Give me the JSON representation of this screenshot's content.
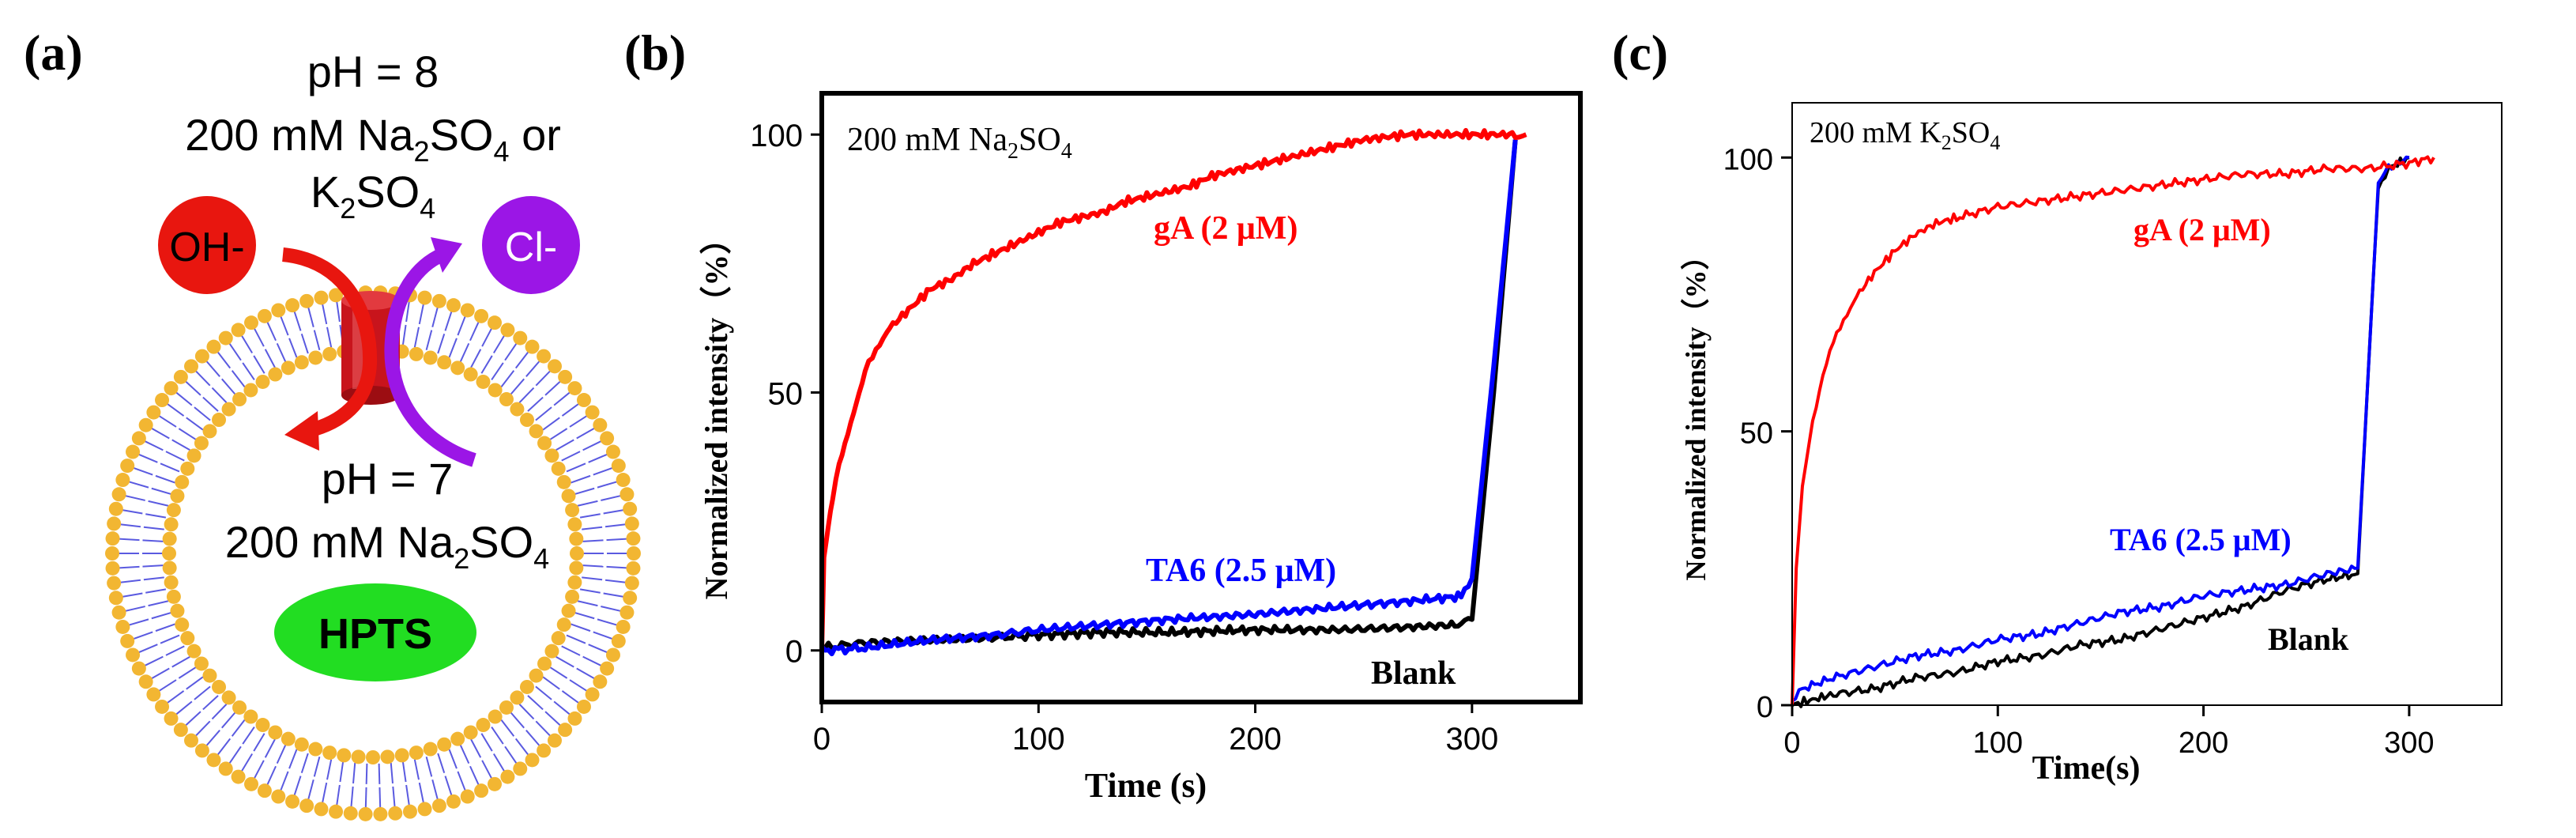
{
  "panel_labels": [
    "(a)",
    "(b)",
    "(c)"
  ],
  "schematic": {
    "outside_ph": "pH = 8",
    "outside_salt": "200 mM Na",
    "outside_salt_sub": "2",
    "outside_salt_tail": "SO",
    "outside_salt_sub2": "4",
    "outside_salt_or": " or",
    "outside_salt2": "K",
    "outside_salt2_sub": "2",
    "outside_salt2_tail": "SO",
    "outside_salt2_sub2": "4",
    "inside_ph": "pH = 7",
    "inside_salt": "200 mM Na",
    "inside_salt_sub": "2",
    "inside_salt_tail": "SO",
    "inside_salt_sub2": "4",
    "ion_out": "OH-",
    "ion_in": "Cl-",
    "dye": "HPTS",
    "colors": {
      "oh": "#e8160f",
      "cl": "#9b16e6",
      "hpts": "#22dd22",
      "lipid_head": "#f2b632",
      "lipid_tail": "#5a5ae0",
      "channel": "#c8141c"
    }
  },
  "chart_data": [
    {
      "type": "line",
      "panel": "(b)",
      "annotation": "200 mM Na",
      "annotation_sub": "2",
      "annotation_tail": "SO",
      "annotation_sub2": "4",
      "xlabel": "Time (s)",
      "ylabel": "Normalized intensity（%）",
      "xlim": [
        0,
        350
      ],
      "ylim": [
        -10,
        108
      ],
      "xticks": [
        0,
        100,
        200,
        300
      ],
      "yticks": [
        0,
        50,
        100
      ],
      "series": [
        {
          "name": "gA (2 μM)",
          "color": "#ff0000",
          "x": [
            0,
            1,
            3,
            5,
            8,
            12,
            16,
            20,
            25,
            30,
            40,
            50,
            60,
            70,
            80,
            90,
            100,
            110,
            120,
            130,
            140,
            150,
            160,
            170,
            180,
            190,
            200,
            210,
            220,
            230,
            240,
            250,
            260,
            270,
            280,
            290,
            300,
            310,
            320,
            325
          ],
          "y": [
            0,
            18,
            24,
            30,
            36,
            42,
            48,
            54,
            58,
            62,
            66,
            70,
            72,
            75,
            77,
            79,
            81,
            83,
            84,
            85,
            87,
            88,
            89,
            90,
            92,
            93,
            94,
            95,
            96,
            97,
            98,
            99,
            99.5,
            100,
            100,
            100,
            100,
            100,
            100,
            100
          ]
        },
        {
          "name": "TA6 (2.5 μM)",
          "color": "#0000ff",
          "x": [
            0,
            20,
            50,
            80,
            100,
            130,
            160,
            200,
            240,
            270,
            295,
            300,
            310,
            320
          ],
          "y": [
            0,
            0.5,
            2,
            3,
            4,
            5,
            6,
            7,
            8.5,
            9.5,
            10.5,
            14,
            55,
            99
          ]
        },
        {
          "name": "Blank",
          "color": "#000000",
          "x": [
            0,
            20,
            50,
            80,
            100,
            130,
            160,
            200,
            240,
            270,
            295,
            300,
            310,
            320
          ],
          "y": [
            0.5,
            1.5,
            2,
            2.5,
            3,
            3.5,
            3.5,
            4,
            4,
            4.5,
            5,
            6,
            50,
            99
          ]
        }
      ]
    },
    {
      "type": "line",
      "panel": "(c)",
      "annotation": "200 mM K",
      "annotation_sub": "2",
      "annotation_tail": "SO",
      "annotation_sub2": "4",
      "xlabel": "Time(s)",
      "ylabel": "Normalized intensity（%）",
      "xlim": [
        0,
        345
      ],
      "ylim": [
        0,
        110
      ],
      "xticks": [
        0,
        100,
        200,
        300
      ],
      "yticks": [
        0,
        50,
        100
      ],
      "series": [
        {
          "name": "gA (2 μM)",
          "color": "#ff0000",
          "x": [
            0,
            2,
            5,
            10,
            15,
            20,
            25,
            30,
            40,
            50,
            60,
            70,
            80,
            100,
            120,
            140,
            160,
            180,
            200,
            220,
            240,
            260,
            280,
            300,
            312
          ],
          "y": [
            0,
            25,
            40,
            52,
            60,
            66,
            70,
            74,
            79,
            83,
            86,
            88,
            89,
            91,
            92,
            93,
            94,
            95,
            96,
            97,
            97,
            98,
            98,
            99,
            100
          ]
        },
        {
          "name": "TA6 (2.5 μM)",
          "color": "#0000ff",
          "x": [
            0,
            5,
            20,
            40,
            60,
            80,
            100,
            120,
            140,
            160,
            180,
            200,
            220,
            240,
            260,
            275,
            280,
            285,
            290,
            300
          ],
          "y": [
            0,
            3,
            5,
            7,
            9,
            10,
            12,
            13,
            15,
            17,
            18,
            20,
            21,
            22,
            24,
            25,
            60,
            95,
            98,
            100
          ]
        },
        {
          "name": "Blank",
          "color": "#000000",
          "x": [
            0,
            10,
            20,
            40,
            60,
            80,
            100,
            120,
            140,
            160,
            180,
            200,
            220,
            240,
            260,
            275,
            280,
            285,
            290,
            300
          ],
          "y": [
            0,
            1,
            2,
            3,
            5,
            6,
            8,
            9,
            11,
            12,
            14,
            16,
            18,
            21,
            23,
            24,
            60,
            95,
            98,
            100
          ]
        }
      ]
    }
  ]
}
